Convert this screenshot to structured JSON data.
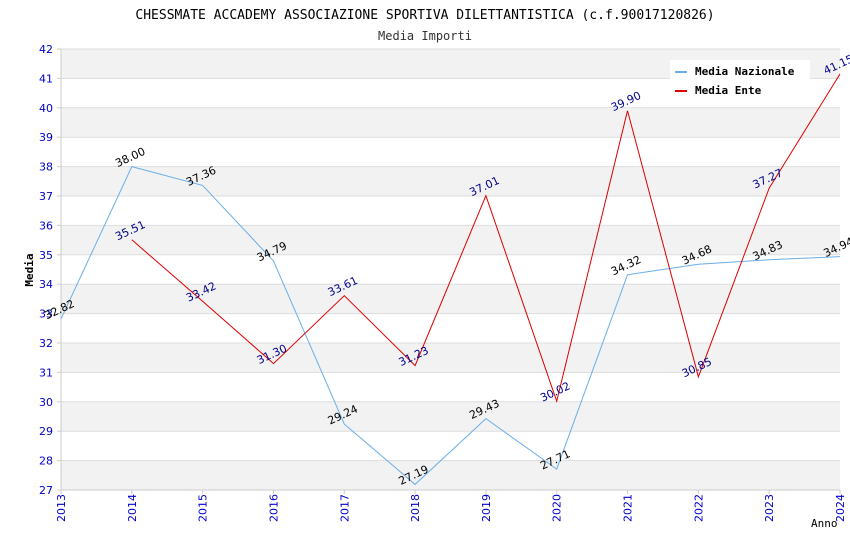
{
  "chart_data": {
    "type": "line",
    "title": "CHESSMATE ACCADEMY ASSOCIAZIONE SPORTIVA DILETTANTISTICA (c.f.90017120826)",
    "subtitle": "Media Importi",
    "xlabel": "Anno",
    "ylabel": "Media",
    "x": [
      "2013",
      "2014",
      "2015",
      "2016",
      "2017",
      "2018",
      "2019",
      "2020",
      "2021",
      "2022",
      "2023",
      "2024"
    ],
    "ylim": [
      27,
      42
    ],
    "yticks": [
      "27",
      "28",
      "29",
      "30",
      "31",
      "32",
      "33",
      "34",
      "35",
      "36",
      "37",
      "38",
      "39",
      "40",
      "41",
      "42"
    ],
    "grid": "horizontal alternating bands",
    "legend_position": "top-right",
    "series": [
      {
        "name": "Media Nazionale",
        "color": "#6aaee8",
        "label_color": "#000000",
        "values": [
          32.82,
          38.0,
          37.36,
          34.79,
          29.24,
          27.19,
          29.43,
          27.71,
          34.32,
          34.68,
          34.83,
          34.94
        ],
        "labels": [
          "32.82",
          "38.00",
          "37.36",
          "34.79",
          "29.24",
          "27.19",
          "29.43",
          "27.71",
          "34.32",
          "34.68",
          "34.83",
          "34.94"
        ]
      },
      {
        "name": "Media Ente",
        "color": "#e00000",
        "label_color": "#00008b",
        "values": [
          null,
          35.51,
          33.42,
          31.3,
          33.61,
          31.23,
          37.01,
          30.02,
          39.9,
          30.85,
          37.27,
          41.15
        ],
        "labels": [
          "",
          "35.51",
          "33.42",
          "31.30",
          "33.61",
          "31.23",
          "37.01",
          "30.02",
          "39.90",
          "30.85",
          "37.27",
          "41.15"
        ]
      }
    ],
    "colors": {
      "axis_tick": "#0000cc",
      "band": "#f2f2f2",
      "grid": "#dddddd",
      "axis": "#cccccc"
    }
  }
}
